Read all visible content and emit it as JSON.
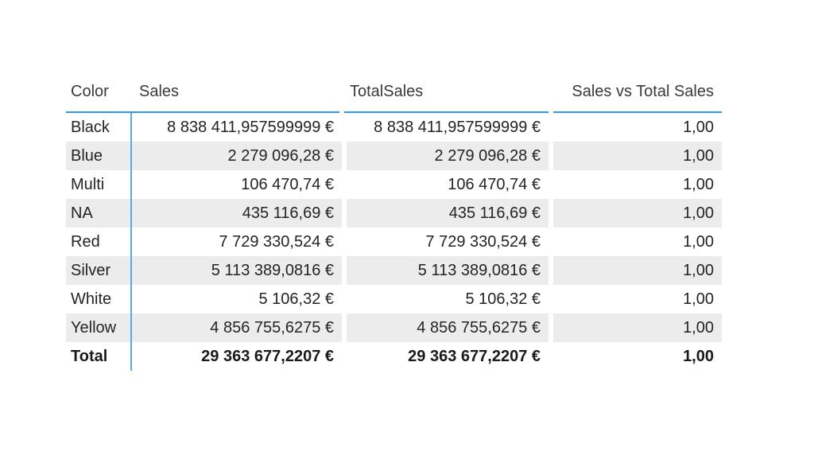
{
  "visual": {
    "background": "#ffffff",
    "accent_blue": "#2f9ce9",
    "vertical_line_blue": "#5aa7f2",
    "alt_row_gray": "#ececec",
    "text_color": "#252423"
  },
  "table": {
    "columns": [
      {
        "label": "Color"
      },
      {
        "label": "Sales"
      },
      {
        "label": "TotalSales"
      },
      {
        "label": "Sales vs Total Sales"
      }
    ],
    "rows": [
      {
        "color": "Black",
        "sales": "8 838 411,957599999 €",
        "total_sales": "8 838 411,957599999 €",
        "ratio": "1,00"
      },
      {
        "color": "Blue",
        "sales": "2 279 096,28 €",
        "total_sales": "2 279 096,28 €",
        "ratio": "1,00"
      },
      {
        "color": "Multi",
        "sales": "106 470,74 €",
        "total_sales": "106 470,74 €",
        "ratio": "1,00"
      },
      {
        "color": "NA",
        "sales": "435 116,69 €",
        "total_sales": "435 116,69 €",
        "ratio": "1,00"
      },
      {
        "color": "Red",
        "sales": "7 729 330,524 €",
        "total_sales": "7 729 330,524 €",
        "ratio": "1,00"
      },
      {
        "color": "Silver",
        "sales": "5 113 389,0816 €",
        "total_sales": "5 113 389,0816 €",
        "ratio": "1,00"
      },
      {
        "color": "White",
        "sales": "5 106,32 €",
        "total_sales": "5 106,32 €",
        "ratio": "1,00"
      },
      {
        "color": "Yellow",
        "sales": "4 856 755,6275 €",
        "total_sales": "4 856 755,6275 €",
        "ratio": "1,00"
      }
    ],
    "total_row": {
      "color": "Total",
      "sales": "29 363 677,2207 €",
      "total_sales": "29 363 677,2207 €",
      "ratio": "1,00"
    }
  },
  "chart_data": {
    "type": "table",
    "title": "",
    "columns": [
      "Color",
      "Sales",
      "TotalSales",
      "Sales vs Total Sales"
    ],
    "rows": [
      [
        "Black",
        "8 838 411,957599999 €",
        "8 838 411,957599999 €",
        "1,00"
      ],
      [
        "Blue",
        "2 279 096,28 €",
        "2 279 096,28 €",
        "1,00"
      ],
      [
        "Multi",
        "106 470,74 €",
        "106 470,74 €",
        "1,00"
      ],
      [
        "NA",
        "435 116,69 €",
        "435 116,69 €",
        "1,00"
      ],
      [
        "Red",
        "7 729 330,524 €",
        "7 729 330,524 €",
        "1,00"
      ],
      [
        "Silver",
        "5 113 389,0816 €",
        "5 113 389,0816 €",
        "1,00"
      ],
      [
        "White",
        "5 106,32 €",
        "5 106,32 €",
        "1,00"
      ],
      [
        "Yellow",
        "4 856 755,6275 €",
        "4 856 755,6275 €",
        "1,00"
      ],
      [
        "Total",
        "29 363 677,2207 €",
        "29 363 677,2207 €",
        "1,00"
      ]
    ],
    "numeric": {
      "categories": [
        "Black",
        "Blue",
        "Multi",
        "NA",
        "Red",
        "Silver",
        "White",
        "Yellow"
      ],
      "sales": [
        8838411.9576,
        2279096.28,
        106470.74,
        435116.69,
        7729330.524,
        5113389.0816,
        5106.32,
        4856755.6275
      ],
      "total_sales": [
        8838411.9576,
        2279096.28,
        106470.74,
        435116.69,
        7729330.524,
        5113389.0816,
        5106.32,
        4856755.6275
      ],
      "sales_vs_total_sales": [
        1.0,
        1.0,
        1.0,
        1.0,
        1.0,
        1.0,
        1.0,
        1.0
      ],
      "grand_total_sales": 29363677.2207,
      "currency": "EUR"
    },
    "layout": {
      "alternating_row_shading": true,
      "header_underline_color": "#2f9ce9",
      "totals_row": true
    }
  }
}
